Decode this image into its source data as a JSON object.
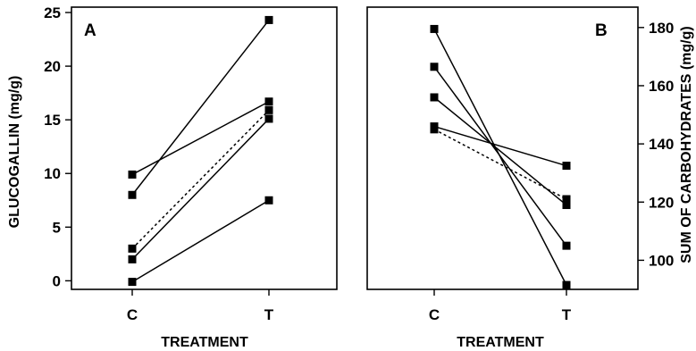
{
  "chart_data": [
    {
      "type": "line",
      "panel_label": "A",
      "categories": [
        "C",
        "T"
      ],
      "xlabel": "TREATMENT",
      "ylabel": "GLUCOGALLIN (mg/g)",
      "ylim": [
        -0.8,
        25.5
      ],
      "yticks": [
        0,
        5,
        10,
        15,
        20,
        25
      ],
      "y_axis_side": "left",
      "series": [
        {
          "values": [
            8.0,
            24.3
          ],
          "style": "solid"
        },
        {
          "values": [
            9.9,
            16.7
          ],
          "style": "solid"
        },
        {
          "values": [
            2.0,
            15.1
          ],
          "style": "solid"
        },
        {
          "values": [
            3.0,
            15.9
          ],
          "style": "dotted"
        },
        {
          "values": [
            -0.1,
            7.5
          ],
          "style": "solid"
        }
      ]
    },
    {
      "type": "line",
      "panel_label": "B",
      "categories": [
        "C",
        "T"
      ],
      "xlabel": "TREATMENT",
      "ylabel": "SUM OF CARBOHYDRATES (mg/g)",
      "ylim": [
        90,
        187
      ],
      "yticks": [
        100,
        120,
        140,
        160,
        180
      ],
      "y_axis_side": "right",
      "series": [
        {
          "values": [
            179.5,
            91.5
          ],
          "style": "solid"
        },
        {
          "values": [
            166.5,
            105.0
          ],
          "style": "solid"
        },
        {
          "values": [
            156.0,
            119.0
          ],
          "style": "solid"
        },
        {
          "values": [
            146.0,
            132.5
          ],
          "style": "solid"
        },
        {
          "values": [
            145.0,
            121.0
          ],
          "style": "dotted"
        }
      ]
    }
  ]
}
